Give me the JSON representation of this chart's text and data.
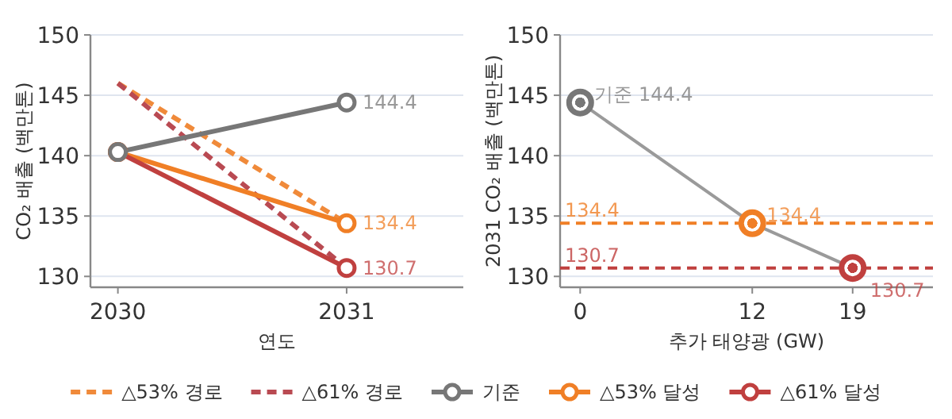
{
  "chart_data": [
    {
      "type": "line",
      "xlabel": "연도",
      "ylabel": "CO₂ 배출 (백만톤)",
      "x": [
        2030,
        2031
      ],
      "xlim": [
        2029.88,
        2031.51
      ],
      "xticks": [
        2030,
        2031
      ],
      "ylim": [
        129.1,
        150
      ],
      "yticks": [
        130,
        135,
        140,
        145,
        150
      ],
      "grid": "y",
      "legend": "bottom",
      "series": [
        {
          "name": "△53% 경로",
          "color": "#f08a3a",
          "values": [
            146,
            134.4
          ],
          "line_style": "dashed",
          "marker": "none"
        },
        {
          "name": "△61% 경로",
          "color": "#b94a52",
          "values": [
            146,
            130.7
          ],
          "line_style": "dashed",
          "marker": "none"
        },
        {
          "name": "기준",
          "color": "#777777",
          "values": [
            140.3,
            144.4
          ],
          "marker": "circle",
          "value_labels": [
            null,
            "144.4"
          ]
        },
        {
          "name": "△53% 달성",
          "color": "#f07f26",
          "values": [
            140.3,
            134.4
          ],
          "marker": "circle",
          "value_labels": [
            null,
            "134.4"
          ]
        },
        {
          "name": "△61% 달성",
          "color": "#c0403f",
          "values": [
            140.3,
            130.7
          ],
          "marker": "circle",
          "value_labels": [
            null,
            "130.7"
          ]
        }
      ]
    },
    {
      "type": "line",
      "xlabel": "추가 태양광 (GW)",
      "ylabel": "2031 CO₂ 배출 (백만톤)",
      "x": [
        0,
        12,
        19
      ],
      "xlim": [
        -1.4,
        24.6
      ],
      "xticks": [
        0,
        12,
        19
      ],
      "ylim": [
        129.1,
        150
      ],
      "yticks": [
        130,
        135,
        140,
        145,
        150
      ],
      "grid": "y",
      "series": [
        {
          "color": "#9a9a9a",
          "values": [
            144.4,
            134.4,
            130.7
          ]
        },
        {
          "type": "scatter",
          "colors": [
            "#777777",
            "#f07f26",
            "#c0403f"
          ],
          "values": [
            144.4,
            134.4,
            130.7
          ],
          "marker": "circle",
          "value_labels": [
            "기준 144.4",
            "134.4",
            "130.7"
          ]
        }
      ],
      "ref_lines": [
        {
          "axis": "y",
          "value": 134.4,
          "label": "134.4",
          "color": "#f07f26",
          "line_style": "dashed"
        },
        {
          "axis": "y",
          "value": 130.7,
          "label": "130.7",
          "color": "#c0403f",
          "line_style": "dashed"
        }
      ]
    }
  ]
}
